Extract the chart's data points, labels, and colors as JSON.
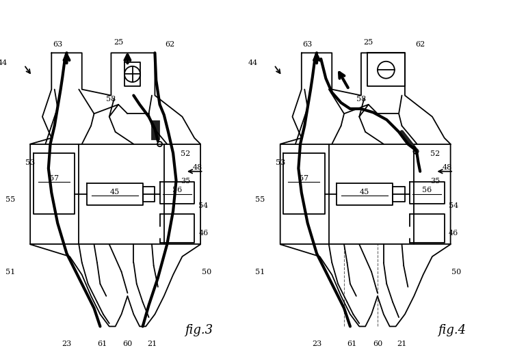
{
  "bg_color": "#ffffff",
  "line_color": "#000000",
  "fig_width": 7.5,
  "fig_height": 5.1,
  "lw_thin": 1.3,
  "lw_thick": 3.0,
  "fig3_caption": "fig.3",
  "fig4_caption": "fig.4"
}
